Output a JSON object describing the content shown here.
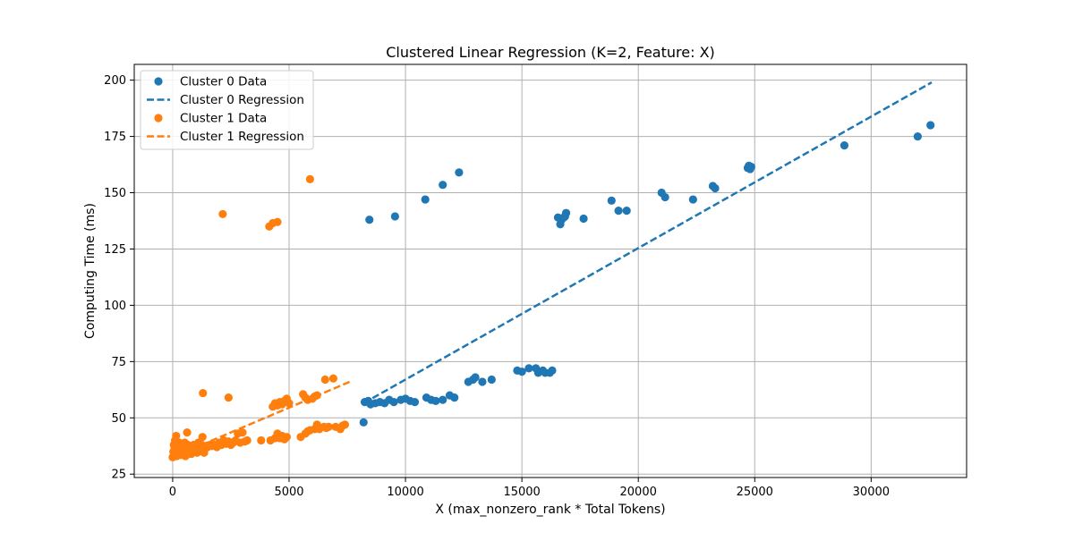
{
  "chart_data": {
    "type": "scatter",
    "title": "Clustered Linear Regression (K=2, Feature: X)",
    "xlabel": "X (max_nonzero_rank * Total Tokens)",
    "ylabel": "Computing Time (ms)",
    "xlim": [
      -1650,
      34100
    ],
    "ylim": [
      23.5,
      207
    ],
    "xticks": [
      0,
      5000,
      10000,
      15000,
      20000,
      25000,
      30000
    ],
    "yticks": [
      25,
      50,
      75,
      100,
      125,
      150,
      175,
      200
    ],
    "grid": true,
    "legend_position": "upper-left",
    "series": [
      {
        "name": "Cluster 0 Data",
        "kind": "scatter",
        "color": "#1f77b4",
        "points": [
          [
            8200,
            48
          ],
          [
            8250,
            57
          ],
          [
            8400,
            57.5
          ],
          [
            8500,
            56
          ],
          [
            8700,
            56.5
          ],
          [
            8900,
            57
          ],
          [
            9100,
            56.5
          ],
          [
            9300,
            58
          ],
          [
            9500,
            57
          ],
          [
            9800,
            58
          ],
          [
            10000,
            58.5
          ],
          [
            10200,
            57.5
          ],
          [
            10400,
            57
          ],
          [
            10900,
            59
          ],
          [
            11100,
            58
          ],
          [
            11300,
            57.5
          ],
          [
            11600,
            58
          ],
          [
            11900,
            60
          ],
          [
            12100,
            59
          ],
          [
            12700,
            66
          ],
          [
            12900,
            67
          ],
          [
            13000,
            68
          ],
          [
            13300,
            66
          ],
          [
            13700,
            67
          ],
          [
            14800,
            71
          ],
          [
            15000,
            70.5
          ],
          [
            15300,
            72
          ],
          [
            15600,
            72
          ],
          [
            15700,
            70
          ],
          [
            15900,
            71
          ],
          [
            16000,
            70
          ],
          [
            16200,
            70
          ],
          [
            16300,
            71
          ],
          [
            8450,
            138
          ],
          [
            9550,
            139.5
          ],
          [
            10850,
            147
          ],
          [
            11600,
            153.5
          ],
          [
            12300,
            159
          ],
          [
            16550,
            139
          ],
          [
            16650,
            136
          ],
          [
            16700,
            138
          ],
          [
            16800,
            139
          ],
          [
            16900,
            141
          ],
          [
            16850,
            139.5
          ],
          [
            17650,
            138.5
          ],
          [
            18850,
            146.5
          ],
          [
            19150,
            142
          ],
          [
            19500,
            142
          ],
          [
            21000,
            150
          ],
          [
            21150,
            148
          ],
          [
            22350,
            147
          ],
          [
            23200,
            153
          ],
          [
            23300,
            152
          ],
          [
            24700,
            161
          ],
          [
            24750,
            162
          ],
          [
            24850,
            161.5
          ],
          [
            24800,
            160.5
          ],
          [
            28850,
            171
          ],
          [
            32000,
            175
          ],
          [
            32550,
            180
          ]
        ]
      },
      {
        "name": "Cluster 0 Regression",
        "kind": "line",
        "color": "#1f77b4",
        "points": [
          [
            8200,
            56.5
          ],
          [
            32600,
            199
          ]
        ]
      },
      {
        "name": "Cluster 1 Data",
        "kind": "scatter",
        "color": "#ff7f0e",
        "points": [
          [
            0,
            32.5
          ],
          [
            30,
            35
          ],
          [
            50,
            38
          ],
          [
            60,
            33
          ],
          [
            80,
            36
          ],
          [
            100,
            40
          ],
          [
            110,
            34
          ],
          [
            130,
            37
          ],
          [
            150,
            42
          ],
          [
            170,
            33
          ],
          [
            200,
            35
          ],
          [
            220,
            38
          ],
          [
            250,
            36
          ],
          [
            280,
            39
          ],
          [
            300,
            34
          ],
          [
            320,
            37
          ],
          [
            350,
            33.5
          ],
          [
            380,
            35.5
          ],
          [
            400,
            38
          ],
          [
            430,
            36
          ],
          [
            450,
            34
          ],
          [
            480,
            37.5
          ],
          [
            500,
            35
          ],
          [
            520,
            39
          ],
          [
            550,
            33
          ],
          [
            580,
            36.5
          ],
          [
            600,
            34.5
          ],
          [
            620,
            43.5
          ],
          [
            650,
            38
          ],
          [
            700,
            35
          ],
          [
            750,
            37
          ],
          [
            800,
            34
          ],
          [
            850,
            36
          ],
          [
            900,
            38
          ],
          [
            950,
            35
          ],
          [
            1000,
            37
          ],
          [
            1050,
            34.5
          ],
          [
            1100,
            39
          ],
          [
            1150,
            36
          ],
          [
            1200,
            35.5
          ],
          [
            1250,
            38
          ],
          [
            1280,
            41.5
          ],
          [
            1300,
            36.5
          ],
          [
            1350,
            34.5
          ],
          [
            1500,
            37
          ],
          [
            1600,
            38
          ],
          [
            1700,
            37.5
          ],
          [
            1800,
            38
          ],
          [
            1900,
            37
          ],
          [
            2000,
            39
          ],
          [
            2100,
            38
          ],
          [
            2200,
            40
          ],
          [
            2300,
            38.5
          ],
          [
            2400,
            39.5
          ],
          [
            2500,
            38
          ],
          [
            2600,
            39
          ],
          [
            2700,
            40
          ],
          [
            2800,
            43
          ],
          [
            2900,
            39
          ],
          [
            3000,
            43.5
          ],
          [
            3100,
            39.5
          ],
          [
            3200,
            40
          ],
          [
            3800,
            40
          ],
          [
            4200,
            40
          ],
          [
            4400,
            41
          ],
          [
            4500,
            43
          ],
          [
            4600,
            41
          ],
          [
            4700,
            42
          ],
          [
            4800,
            40.5
          ],
          [
            4900,
            41.5
          ],
          [
            5500,
            41.5
          ],
          [
            5700,
            43
          ],
          [
            5800,
            44
          ],
          [
            5900,
            44.5
          ],
          [
            6100,
            45
          ],
          [
            6200,
            47
          ],
          [
            6300,
            45
          ],
          [
            6500,
            46
          ],
          [
            6600,
            45.5
          ],
          [
            6700,
            46
          ],
          [
            7000,
            46
          ],
          [
            7200,
            45
          ],
          [
            7300,
            46.5
          ],
          [
            7400,
            47
          ],
          [
            4300,
            55
          ],
          [
            4400,
            56.5
          ],
          [
            4500,
            55.5
          ],
          [
            4600,
            57
          ],
          [
            4700,
            56
          ],
          [
            4800,
            57.5
          ],
          [
            4900,
            58.5
          ],
          [
            5000,
            56.5
          ],
          [
            5600,
            60.5
          ],
          [
            5700,
            59
          ],
          [
            5800,
            58
          ],
          [
            6000,
            58.5
          ],
          [
            6100,
            59.5
          ],
          [
            6200,
            60
          ],
          [
            6550,
            67
          ],
          [
            6900,
            67.5
          ],
          [
            1300,
            61
          ],
          [
            2400,
            59
          ],
          [
            2150,
            140.5
          ],
          [
            4150,
            135
          ],
          [
            4300,
            136.5
          ],
          [
            4500,
            137
          ],
          [
            5900,
            156
          ]
        ]
      },
      {
        "name": "Cluster 1 Regression",
        "kind": "line",
        "color": "#ff7f0e",
        "points": [
          [
            0,
            32.5
          ],
          [
            7600,
            66
          ]
        ]
      }
    ]
  }
}
